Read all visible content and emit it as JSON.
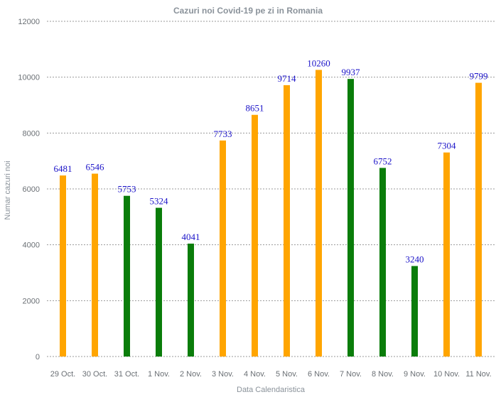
{
  "chart_data": {
    "type": "bar",
    "title": "Cazuri noi Covid-19 pe zi in Romania",
    "xlabel": "Data Calendaristica",
    "ylabel": "Numar cazuri noi",
    "ylim": [
      0,
      12000
    ],
    "yticks": [
      0,
      2000,
      4000,
      6000,
      8000,
      10000,
      12000
    ],
    "grid": true,
    "categories": [
      "29 Oct.",
      "30 Oct.",
      "31 Oct.",
      "1 Nov.",
      "2 Nov.",
      "3 Nov.",
      "4 Nov.",
      "5 Nov.",
      "6 Nov.",
      "7 Nov.",
      "8 Nov.",
      "9 Nov.",
      "10 Nov.",
      "11 Nov."
    ],
    "values": [
      6481,
      6546,
      5753,
      5324,
      4041,
      7733,
      8651,
      9714,
      10260,
      9937,
      6752,
      3240,
      7304,
      9799
    ],
    "bar_colors": [
      "#ffa500",
      "#ffa500",
      "#0a7d0a",
      "#0a7d0a",
      "#0a7d0a",
      "#ffa500",
      "#ffa500",
      "#ffa500",
      "#ffa500",
      "#0a7d0a",
      "#0a7d0a",
      "#0a7d0a",
      "#ffa500",
      "#ffa500"
    ],
    "data_label_color": "#1a12c8"
  }
}
